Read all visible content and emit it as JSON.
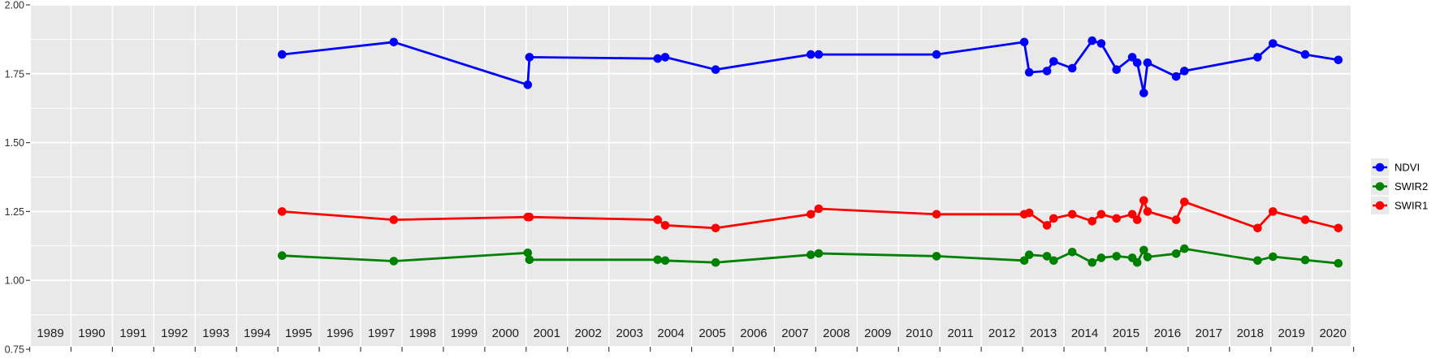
{
  "figure": {
    "background": "#FFFFFF",
    "panel_background": "#E9E9E9",
    "grid_color": "#FFFFFF",
    "tick_color": "#404040",
    "x_label_color": "#1F1F1F",
    "y_label_color": "#303030",
    "legend_text_color": "#000000",
    "legend_key_background": "#E9E9E9"
  },
  "chart_data": {
    "type": "line",
    "title": "",
    "xlabel": "",
    "ylabel": "",
    "grid": "on",
    "legend_position": "right-center",
    "x_range": [
      1988.5,
      2020.5
    ],
    "ylim": [
      0.75,
      2.0
    ],
    "x_tick_labels": [
      "1989",
      "1990",
      "1991",
      "1992",
      "1993",
      "1994",
      "1995",
      "1996",
      "1997",
      "1998",
      "1999",
      "2000",
      "2001",
      "2002",
      "2003",
      "2004",
      "2005",
      "2006",
      "2007",
      "2008",
      "2009",
      "2010",
      "2011",
      "2012",
      "2013",
      "2014",
      "2015",
      "2016",
      "2017",
      "2018",
      "2019",
      "2020"
    ],
    "y_ticks": [
      0.75,
      1.0,
      1.25,
      1.5,
      1.75,
      2.0
    ],
    "y_tick_labels": [
      "0.75",
      "1.00",
      "1.25",
      "1.50",
      "1.75",
      "2.00"
    ],
    "y_minor_ticks": [
      0.875,
      1.125,
      1.375,
      1.625,
      1.875
    ],
    "x": [
      1994.6,
      1997.3,
      2000.54,
      2000.58,
      2003.68,
      2003.86,
      2005.08,
      2007.38,
      2007.57,
      2010.42,
      2012.54,
      2012.66,
      2013.09,
      2013.25,
      2013.7,
      2014.18,
      2014.4,
      2014.77,
      2015.15,
      2015.27,
      2015.43,
      2015.52,
      2016.21,
      2016.41,
      2018.18,
      2018.55,
      2019.33,
      2020.13
    ],
    "series": [
      {
        "name": "NDVI",
        "color": "#0000FF",
        "values": [
          1.82,
          1.865,
          1.71,
          1.81,
          1.805,
          1.81,
          1.765,
          1.82,
          1.82,
          1.82,
          1.865,
          1.755,
          1.76,
          1.795,
          1.77,
          1.87,
          1.86,
          1.765,
          1.81,
          1.79,
          1.68,
          1.79,
          1.74,
          1.76,
          1.81,
          1.86,
          1.82,
          1.8
        ]
      },
      {
        "name": "SWIR2",
        "color": "#008000",
        "values": [
          1.09,
          1.07,
          1.1,
          1.075,
          1.075,
          1.072,
          1.065,
          1.093,
          1.098,
          1.088,
          1.072,
          1.093,
          1.088,
          1.072,
          1.103,
          1.065,
          1.082,
          1.088,
          1.082,
          1.065,
          1.11,
          1.085,
          1.097,
          1.115,
          1.072,
          1.086,
          1.074,
          1.062
        ]
      },
      {
        "name": "SWIR1",
        "color": "#FF0000",
        "values": [
          1.25,
          1.22,
          1.23,
          1.23,
          1.22,
          1.2,
          1.19,
          1.24,
          1.26,
          1.24,
          1.24,
          1.245,
          1.2,
          1.225,
          1.24,
          1.215,
          1.24,
          1.225,
          1.24,
          1.22,
          1.29,
          1.25,
          1.22,
          1.285,
          1.19,
          1.25,
          1.22,
          1.19
        ]
      }
    ],
    "legend_entries": [
      "NDVI",
      "SWIR2",
      "SWIR1"
    ]
  }
}
